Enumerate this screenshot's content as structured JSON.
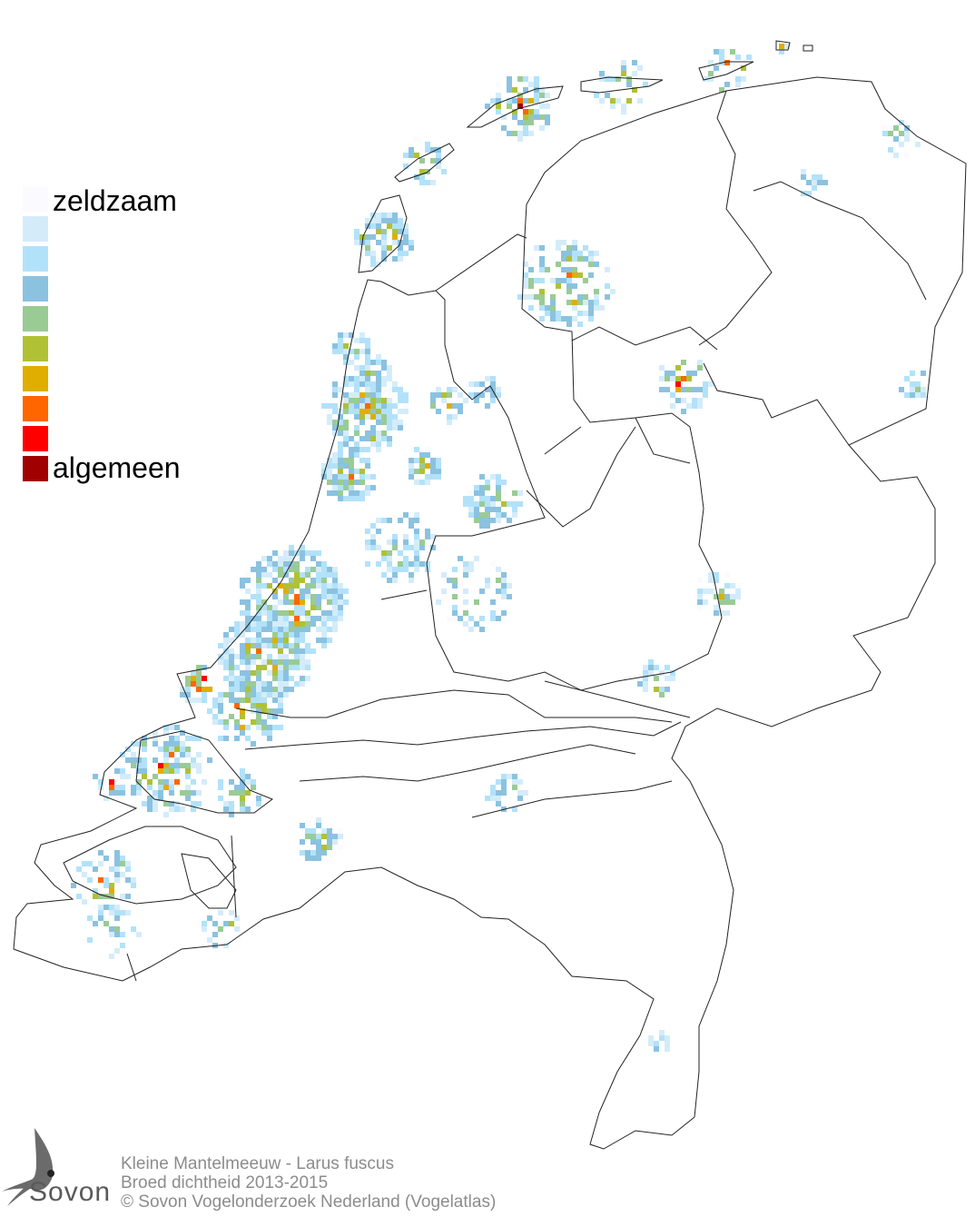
{
  "legend": {
    "items": [
      {
        "label": "zeldzaam",
        "color": "#fbfbff"
      },
      {
        "label": "",
        "color": "#d4ecfa"
      },
      {
        "label": "",
        "color": "#b2e2fa"
      },
      {
        "label": "",
        "color": "#8bc2e0"
      },
      {
        "label": "",
        "color": "#9acb95"
      },
      {
        "label": "",
        "color": "#b0c135"
      },
      {
        "label": "",
        "color": "#e0ae00"
      },
      {
        "label": "",
        "color": "#ff6600"
      },
      {
        "label": "",
        "color": "#ff0000"
      },
      {
        "label": "algemeen",
        "color": "#a00000"
      }
    ]
  },
  "footer": {
    "line1": "Kleine Mantelmeeuw - Larus fuscus",
    "line2": "Broed dichtheid 2013-2015",
    "line3": "© Sovon Vogelonderzoek Nederland (Vogelatlas)"
  },
  "logo": {
    "text": "Sovon"
  }
}
